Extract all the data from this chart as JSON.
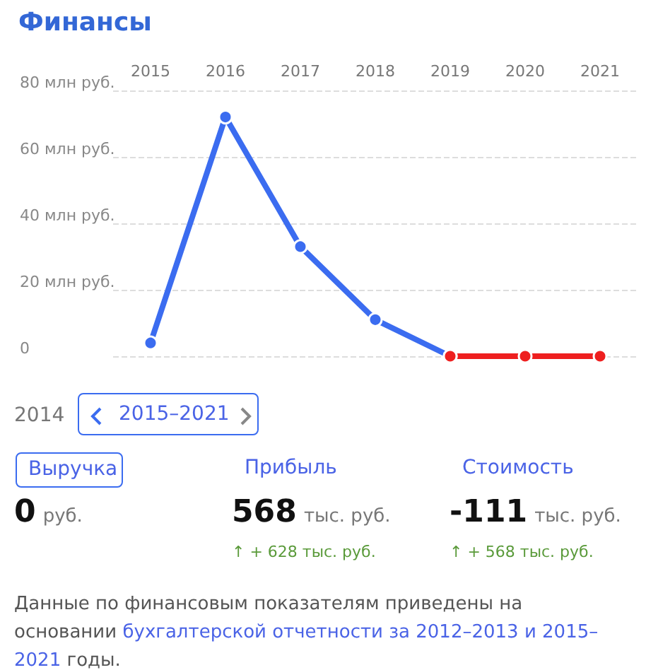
{
  "chart_data": [
    {
      "type": "line",
      "title": "Финансы",
      "categories": [
        "2015",
        "2016",
        "2017",
        "2018",
        "2019",
        "2020",
        "2021"
      ],
      "series": [
        {
          "color": "#3b6cf0",
          "values": [
            4,
            72,
            33,
            11,
            0,
            null,
            null
          ]
        },
        {
          "color": "#ee1f1f",
          "values": [
            null,
            null,
            null,
            null,
            0,
            0,
            0
          ]
        }
      ],
      "ylim": [
        0,
        80
      ],
      "yticks": [
        0,
        {
          "value": 20,
          "label": "20 млн руб."
        },
        {
          "value": 40,
          "label": "40 млн руб."
        },
        {
          "value": 60,
          "label": "60 млн руб."
        },
        {
          "value": 80,
          "label": "80 млн руб."
        }
      ],
      "grid": "y",
      "marker": "circle",
      "line_style": "solid"
    },
    {
      "type": "other",
      "annotations": [
        "2014",
        "2015–2021",
        "Выручка",
        "Прибыль",
        "Стоимость",
        "0",
        "руб.",
        "568",
        "тыс. руб.",
        "-111",
        "тыс. руб.",
        "↑ + 628 тыс. руб.",
        "↑ + 568 тыс. руб.",
        "Данные по финансовым показателям приведены на основании",
        "бухгалтерской отчетности за 2012–2013 и 2015–2021",
        "годы."
      ]
    }
  ]
}
